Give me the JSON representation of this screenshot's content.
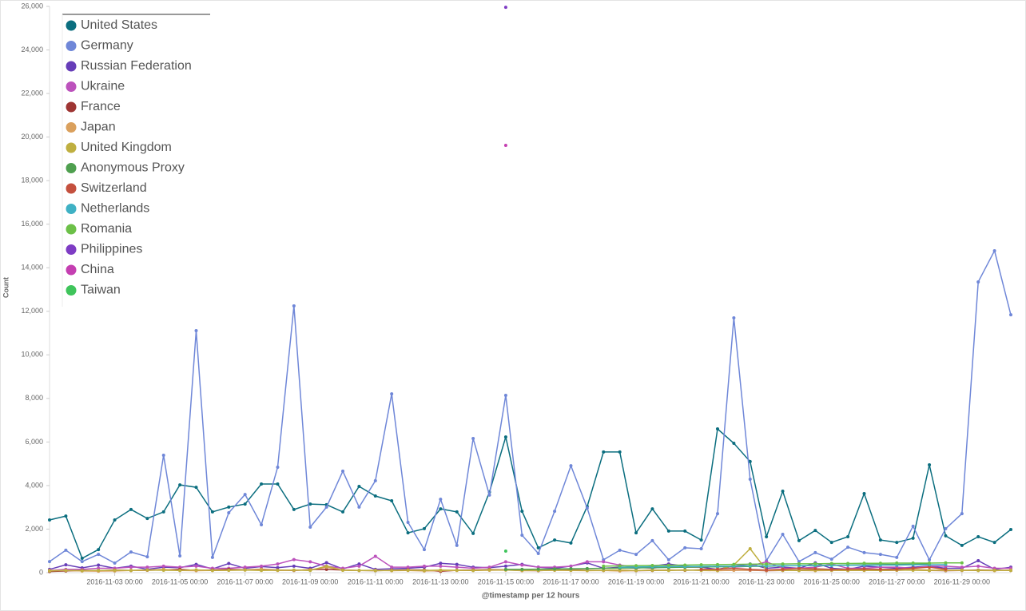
{
  "chart_data": {
    "type": "line",
    "y_label": "Count",
    "x_label": "@timestamp per 12 hours",
    "ylim": [
      0,
      26000
    ],
    "yticks": [
      0,
      {
        "value": 2000,
        "label": "2,000"
      },
      {
        "value": 4000,
        "label": "4,000"
      },
      {
        "value": 6000,
        "label": "6,000"
      },
      {
        "value": 8000,
        "label": "8,000"
      },
      {
        "value": 10000,
        "label": "10,000"
      },
      {
        "value": 12000,
        "label": "12,000"
      },
      {
        "value": 14000,
        "label": "14,000"
      },
      {
        "value": 16000,
        "label": "16,000"
      },
      {
        "value": 18000,
        "label": "18,000"
      },
      {
        "value": 20000,
        "label": "20,000"
      },
      {
        "value": 22000,
        "label": "22,000"
      },
      {
        "value": 24000,
        "label": "24,000"
      },
      {
        "value": 26000,
        "label": "26,000"
      }
    ],
    "x": [
      "2016-11-01 00:00",
      "2016-11-01 12:00",
      "2016-11-02 00:00",
      "2016-11-02 12:00",
      "2016-11-03 00:00",
      "2016-11-03 12:00",
      "2016-11-04 00:00",
      "2016-11-04 12:00",
      "2016-11-05 00:00",
      "2016-11-05 12:00",
      "2016-11-06 00:00",
      "2016-11-06 12:00",
      "2016-11-07 00:00",
      "2016-11-07 12:00",
      "2016-11-08 00:00",
      "2016-11-08 12:00",
      "2016-11-09 00:00",
      "2016-11-09 12:00",
      "2016-11-10 00:00",
      "2016-11-10 12:00",
      "2016-11-11 00:00",
      "2016-11-11 12:00",
      "2016-11-12 00:00",
      "2016-11-12 12:00",
      "2016-11-13 00:00",
      "2016-11-13 12:00",
      "2016-11-14 00:00",
      "2016-11-14 12:00",
      "2016-11-15 00:00",
      "2016-11-15 12:00",
      "2016-11-16 00:00",
      "2016-11-16 12:00",
      "2016-11-17 00:00",
      "2016-11-17 12:00",
      "2016-11-18 00:00",
      "2016-11-18 12:00",
      "2016-11-19 00:00",
      "2016-11-19 12:00",
      "2016-11-20 00:00",
      "2016-11-20 12:00",
      "2016-11-21 00:00",
      "2016-11-21 12:00",
      "2016-11-22 00:00",
      "2016-11-22 12:00",
      "2016-11-23 00:00",
      "2016-11-23 12:00",
      "2016-11-24 00:00",
      "2016-11-24 12:00",
      "2016-11-25 00:00",
      "2016-11-25 12:00",
      "2016-11-26 00:00",
      "2016-11-26 12:00",
      "2016-11-27 00:00",
      "2016-11-27 12:00",
      "2016-11-28 00:00",
      "2016-11-28 12:00",
      "2016-11-29 00:00",
      "2016-11-29 12:00",
      "2016-11-30 00:00",
      "2016-11-30 12:00"
    ],
    "xticks": [
      "2016-11-03 00:00",
      "2016-11-05 00:00",
      "2016-11-07 00:00",
      "2016-11-09 00:00",
      "2016-11-11 00:00",
      "2016-11-13 00:00",
      "2016-11-15 00:00",
      "2016-11-17 00:00",
      "2016-11-19 00:00",
      "2016-11-21 00:00",
      "2016-11-23 00:00",
      "2016-11-25 00:00",
      "2016-11-27 00:00",
      "2016-11-29 00:00"
    ],
    "legend": "top-left",
    "series": [
      {
        "name": "United States",
        "color": "#0b6e7f",
        "values": [
          2420,
          2600,
          660,
          1060,
          2420,
          2900,
          2490,
          2790,
          4030,
          3920,
          2790,
          3010,
          3150,
          4070,
          4070,
          2900,
          3150,
          3120,
          2790,
          3960,
          3520,
          3300,
          1830,
          2020,
          2930,
          2790,
          1800,
          3700,
          6230,
          2820,
          1140,
          1500,
          1360,
          3040,
          5540,
          5540,
          1830,
          2930,
          1910,
          1910,
          1500,
          6600,
          5940,
          5100,
          1650,
          3740,
          1470,
          1940,
          1390,
          1650,
          3630,
          1500,
          1390,
          1580,
          4950,
          1690,
          1250,
          1650,
          1390,
          1980
        ]
      },
      {
        "name": "Germany",
        "color": "#6f87d8",
        "values": [
          510,
          1030,
          510,
          840,
          440,
          950,
          730,
          5390,
          770,
          11110,
          700,
          2750,
          3590,
          2200,
          4840,
          12250,
          2090,
          3010,
          4660,
          3010,
          4220,
          8210,
          2310,
          1060,
          3370,
          1250,
          6160,
          3560,
          8140,
          1720,
          880,
          2820,
          4910,
          2970,
          590,
          1030,
          840,
          1470,
          590,
          1140,
          1100,
          2710,
          11700,
          4290,
          550,
          1760,
          510,
          920,
          620,
          1170,
          920,
          840,
          700,
          2130,
          590,
          2020,
          2710,
          13350,
          14780,
          11840
        ]
      },
      {
        "name": "Russian Federation",
        "color": "#663db8",
        "values": [
          150,
          360,
          220,
          350,
          200,
          300,
          150,
          250,
          230,
          380,
          170,
          420,
          200,
          280,
          230,
          300,
          200,
          460,
          170,
          400,
          150,
          180,
          200,
          250,
          430,
          380,
          250,
          230,
          300,
          380,
          250,
          200,
          300,
          450,
          200,
          250,
          200,
          300,
          400,
          300,
          250,
          150,
          300,
          400,
          200,
          250,
          200,
          450,
          200,
          150,
          300,
          250,
          200,
          250,
          300,
          200,
          200,
          550,
          150,
          250
        ]
      },
      {
        "name": "Ukraine",
        "color": "#bc52bc",
        "values": [
          100,
          150,
          150,
          200,
          200,
          250,
          250,
          300,
          250,
          300,
          200,
          200,
          250,
          300,
          400,
          600,
          500,
          300,
          200,
          300,
          750,
          250,
          250,
          300,
          300,
          250,
          200,
          250,
          500,
          350,
          250,
          250,
          300,
          500,
          500,
          350,
          250,
          200,
          300,
          250,
          250,
          300,
          250,
          300,
          500,
          200,
          200,
          250,
          400,
          200,
          200,
          250,
          250,
          200,
          300,
          300,
          250,
          300,
          200,
          200
        ]
      },
      {
        "name": "France",
        "color": "#9e3533",
        "values": [
          50,
          80,
          100,
          90,
          120,
          100,
          110,
          130,
          150,
          100,
          120,
          150,
          130,
          160,
          120,
          100,
          140,
          150,
          120,
          100,
          90,
          110,
          130,
          120,
          60,
          110,
          120,
          140,
          130,
          100,
          90,
          120,
          130,
          110,
          100,
          120,
          90,
          100,
          120,
          110,
          130,
          100,
          120,
          110,
          90,
          100,
          120,
          130,
          110,
          100,
          120,
          100,
          110,
          130,
          100,
          90,
          100,
          120,
          110,
          100
        ]
      },
      {
        "name": "Japan",
        "color": "#daa05d",
        "values": [
          100,
          100,
          80,
          70,
          80,
          100,
          120,
          150,
          100,
          90,
          100,
          110,
          120,
          150,
          100,
          110,
          130,
          250,
          120,
          100,
          110,
          90,
          100,
          80,
          90,
          100,
          100,
          110,
          120,
          90,
          100,
          110,
          100,
          90,
          100,
          80,
          90,
          120,
          110,
          130,
          100,
          90,
          110,
          120,
          100,
          110,
          100,
          90,
          100,
          110,
          100,
          120,
          110,
          150,
          120,
          100,
          110,
          100,
          90,
          120
        ]
      },
      {
        "name": "United Kingdom",
        "color": "#bfaf40",
        "values": [
          80,
          100,
          90,
          100,
          110,
          100,
          120,
          110,
          100,
          130,
          100,
          110,
          120,
          100,
          110,
          120,
          100,
          300,
          110,
          100,
          90,
          100,
          110,
          100,
          120,
          110,
          100,
          130,
          120,
          110,
          100,
          120,
          110,
          100,
          110,
          120,
          100,
          110,
          100,
          120,
          110,
          100,
          350,
          1100,
          120,
          110,
          100,
          110,
          120,
          100,
          110,
          100,
          120,
          110,
          100,
          120,
          110,
          100,
          110,
          100
        ]
      },
      {
        "name": "Anonymous Proxy",
        "color": "#4f9f4f",
        "values": [
          null,
          null,
          null,
          null,
          null,
          null,
          null,
          null,
          null,
          null,
          null,
          null,
          null,
          null,
          null,
          null,
          null,
          null,
          null,
          null,
          null,
          null,
          null,
          null,
          null,
          null,
          null,
          null,
          150,
          150,
          160,
          170,
          180,
          190,
          200,
          210,
          220,
          230,
          240,
          250,
          260,
          270,
          280,
          290,
          300,
          310,
          320,
          330,
          340,
          350,
          360,
          370,
          380,
          390,
          400,
          null,
          null,
          null,
          null,
          null
        ]
      },
      {
        "name": "Switzerland",
        "color": "#c4503e",
        "values": [
          null,
          null,
          null,
          null,
          null,
          null,
          null,
          null,
          null,
          null,
          null,
          null,
          null,
          null,
          null,
          null,
          null,
          null,
          null,
          null,
          null,
          null,
          null,
          null,
          null,
          null,
          null,
          null,
          null,
          null,
          null,
          null,
          null,
          null,
          null,
          null,
          null,
          null,
          null,
          null,
          150,
          160,
          200,
          150,
          120,
          150,
          200,
          180,
          150,
          160,
          170,
          150,
          160,
          200,
          250,
          150,
          null,
          null,
          null,
          null
        ]
      },
      {
        "name": "Netherlands",
        "color": "#3fb1c4",
        "values": [
          null,
          null,
          null,
          null,
          null,
          null,
          null,
          null,
          null,
          null,
          null,
          null,
          null,
          null,
          null,
          null,
          null,
          null,
          null,
          null,
          null,
          null,
          null,
          null,
          null,
          null,
          null,
          null,
          null,
          null,
          null,
          null,
          null,
          null,
          null,
          250,
          260,
          270,
          280,
          280,
          290,
          300,
          300,
          310,
          310,
          320,
          320,
          330,
          330,
          340,
          340,
          350,
          350,
          360,
          360,
          370,
          null,
          null,
          null,
          null
        ]
      },
      {
        "name": "Romania",
        "color": "#6cc048",
        "values": [
          null,
          null,
          null,
          null,
          null,
          null,
          null,
          null,
          null,
          null,
          null,
          null,
          null,
          null,
          null,
          null,
          null,
          null,
          null,
          null,
          null,
          null,
          null,
          null,
          null,
          null,
          null,
          null,
          null,
          null,
          null,
          null,
          null,
          null,
          300,
          310,
          320,
          330,
          340,
          350,
          360,
          370,
          380,
          390,
          400,
          400,
          410,
          410,
          420,
          420,
          430,
          430,
          440,
          440,
          440,
          450,
          450,
          null,
          null,
          null
        ]
      },
      {
        "name": "Philippines",
        "color": "#7e3cc4",
        "values": [
          null,
          null,
          null,
          null,
          null,
          null,
          null,
          null,
          null,
          null,
          null,
          null,
          null,
          null,
          null,
          null,
          null,
          null,
          null,
          null,
          null,
          null,
          null,
          null,
          null,
          null,
          null,
          null,
          25960,
          null,
          null,
          null,
          null,
          null,
          null,
          null,
          null,
          null,
          null,
          null,
          null,
          null,
          null,
          null,
          null,
          null,
          null,
          null,
          null,
          null,
          null,
          null,
          null,
          null,
          null,
          null,
          null,
          null,
          null,
          null
        ]
      },
      {
        "name": "China",
        "color": "#c43fb1",
        "values": [
          null,
          null,
          null,
          null,
          null,
          null,
          null,
          null,
          null,
          null,
          null,
          null,
          null,
          null,
          null,
          null,
          null,
          null,
          null,
          null,
          null,
          null,
          null,
          null,
          null,
          null,
          null,
          null,
          19620,
          null,
          null,
          null,
          null,
          null,
          null,
          null,
          null,
          null,
          null,
          null,
          null,
          null,
          null,
          null,
          null,
          null,
          null,
          null,
          null,
          null,
          null,
          null,
          null,
          null,
          null,
          null,
          null,
          null,
          null,
          null
        ]
      },
      {
        "name": "Taiwan",
        "color": "#3fc45b",
        "values": [
          null,
          null,
          null,
          null,
          null,
          null,
          null,
          null,
          null,
          null,
          null,
          null,
          null,
          null,
          null,
          null,
          null,
          null,
          null,
          null,
          null,
          null,
          null,
          null,
          null,
          null,
          null,
          null,
          990,
          null,
          null,
          null,
          null,
          null,
          null,
          null,
          null,
          null,
          null,
          null,
          null,
          null,
          null,
          null,
          null,
          null,
          null,
          null,
          null,
          null,
          null,
          null,
          null,
          null,
          null,
          null,
          null,
          null,
          null,
          null
        ]
      }
    ]
  }
}
